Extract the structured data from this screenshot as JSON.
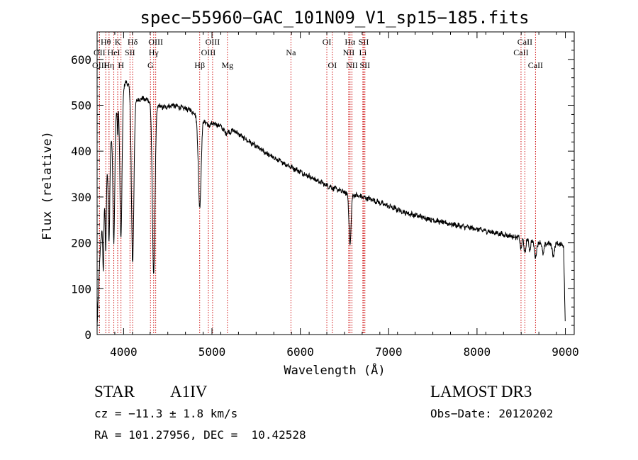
{
  "chart_data": {
    "type": "line",
    "title": "spec−55960−GAC_101N09_V1_sp15−185.fits",
    "xlabel": "Wavelength (Å)",
    "ylabel": "Flux (relative)",
    "xlim": [
      3700,
      9100
    ],
    "ylim": [
      0,
      660
    ],
    "x_ticks": [
      4000,
      5000,
      6000,
      7000,
      8000,
      9000
    ],
    "x_tick_labels": [
      "4000",
      "5000",
      "6000",
      "7000",
      "8000",
      "9000"
    ],
    "y_ticks": [
      0,
      100,
      200,
      300,
      400,
      500,
      600
    ],
    "y_tick_labels": [
      "0",
      "100",
      "200",
      "300",
      "400",
      "500",
      "600"
    ],
    "grid": false,
    "series": [
      {
        "name": "spectrum",
        "color": "#000000",
        "continuum": {
          "x": [
            3700,
            3720,
            3740,
            3760,
            3780,
            3800,
            3830,
            3860,
            3900,
            3940,
            3990,
            4030,
            4080,
            4120,
            4160,
            4200,
            4300,
            4380,
            4450,
            4550,
            4650,
            4750,
            4820,
            4900,
            4960,
            5020,
            5100,
            5150,
            5250,
            5350,
            5500,
            5700,
            5900,
            6100,
            6300,
            6500,
            6600,
            6700,
            6800,
            7000,
            7200,
            7400,
            7600,
            7800,
            8000,
            8200,
            8400,
            8500,
            8600,
            8700,
            8800,
            8900,
            8980,
            9000
          ],
          "y": [
            20,
            120,
            200,
            240,
            280,
            340,
            380,
            430,
            460,
            510,
            540,
            550,
            540,
            520,
            510,
            515,
            510,
            500,
            495,
            500,
            495,
            490,
            480,
            470,
            455,
            460,
            455,
            440,
            445,
            430,
            410,
            385,
            365,
            345,
            325,
            310,
            305,
            300,
            295,
            280,
            265,
            255,
            245,
            237,
            230,
            222,
            214,
            210,
            205,
            200,
            198,
            198,
            196,
            5
          ]
        },
        "absorption_lines": [
          {
            "center": 3770,
            "depth": 120,
            "width": 6
          },
          {
            "center": 3798,
            "depth": 150,
            "width": 6
          },
          {
            "center": 3835,
            "depth": 190,
            "width": 8
          },
          {
            "center": 3889,
            "depth": 250,
            "width": 10
          },
          {
            "center": 3933,
            "depth": 70,
            "width": 4
          },
          {
            "center": 3970,
            "depth": 320,
            "width": 12
          },
          {
            "center": 4102,
            "depth": 370,
            "width": 14
          },
          {
            "center": 4340,
            "depth": 370,
            "width": 15
          },
          {
            "center": 4861,
            "depth": 195,
            "width": 16
          },
          {
            "center": 6563,
            "depth": 110,
            "width": 12
          },
          {
            "center": 8498,
            "depth": 22,
            "width": 9
          },
          {
            "center": 8542,
            "depth": 30,
            "width": 10
          },
          {
            "center": 8598,
            "depth": 20,
            "width": 9
          },
          {
            "center": 8662,
            "depth": 35,
            "width": 11
          },
          {
            "center": 8750,
            "depth": 25,
            "width": 10
          },
          {
            "center": 8863,
            "depth": 28,
            "width": 11
          }
        ]
      }
    ],
    "line_markers": [
      {
        "wavelength": 3798,
        "label": "Hθ",
        "row": 1
      },
      {
        "wavelength": 3727,
        "label": "OII",
        "row": 2
      },
      {
        "wavelength": 3727,
        "label": "OIII",
        "row": 3
      },
      {
        "wavelength": 3835,
        "label": "Hη",
        "row": 3
      },
      {
        "wavelength": 3889,
        "label": "HeI",
        "row": 2
      },
      {
        "wavelength": 3933,
        "label": "K",
        "row": 1
      },
      {
        "wavelength": 3970,
        "label": "H",
        "row": 3
      },
      {
        "wavelength": 4072,
        "label": "SII",
        "row": 2
      },
      {
        "wavelength": 4102,
        "label": "Hδ",
        "row": 1
      },
      {
        "wavelength": 4304,
        "label": "G",
        "row": 3
      },
      {
        "wavelength": 4340,
        "label": "Hγ",
        "row": 2
      },
      {
        "wavelength": 4363,
        "label": "OIII",
        "row": 1
      },
      {
        "wavelength": 4861,
        "label": "Hβ",
        "row": 3
      },
      {
        "wavelength": 4959,
        "label": "OIII",
        "row": 2
      },
      {
        "wavelength": 5007,
        "label": "OIII",
        "row": 1
      },
      {
        "wavelength": 5175,
        "label": "Mg",
        "row": 3
      },
      {
        "wavelength": 5894,
        "label": "Na",
        "row": 2
      },
      {
        "wavelength": 6300,
        "label": "OI",
        "row": 1
      },
      {
        "wavelength": 6363,
        "label": "OI",
        "row": 3
      },
      {
        "wavelength": 6548,
        "label": "NII",
        "row": 2
      },
      {
        "wavelength": 6563,
        "label": "Hα",
        "row": 1
      },
      {
        "wavelength": 6584,
        "label": "NII",
        "row": 3
      },
      {
        "wavelength": 6708,
        "label": "Li",
        "row": 2
      },
      {
        "wavelength": 6717,
        "label": "SII",
        "row": 1
      },
      {
        "wavelength": 6731,
        "label": "SII",
        "row": 3
      },
      {
        "wavelength": 8498,
        "label": "CaII",
        "row": 2
      },
      {
        "wavelength": 8542,
        "label": "CaII",
        "row": 1
      },
      {
        "wavelength": 8662,
        "label": "CaII",
        "row": 3
      }
    ],
    "marker_color": "#cc0000"
  },
  "info": {
    "object_class": "STAR",
    "subclass": "A1IV",
    "survey": "LAMOST DR3",
    "redshift_line": "cz = −11.3 ± 1.8 km/s",
    "obs_date_line": "Obs−Date: 20120202",
    "coords_line": "RA = 101.27956, DEC =  10.42528"
  }
}
